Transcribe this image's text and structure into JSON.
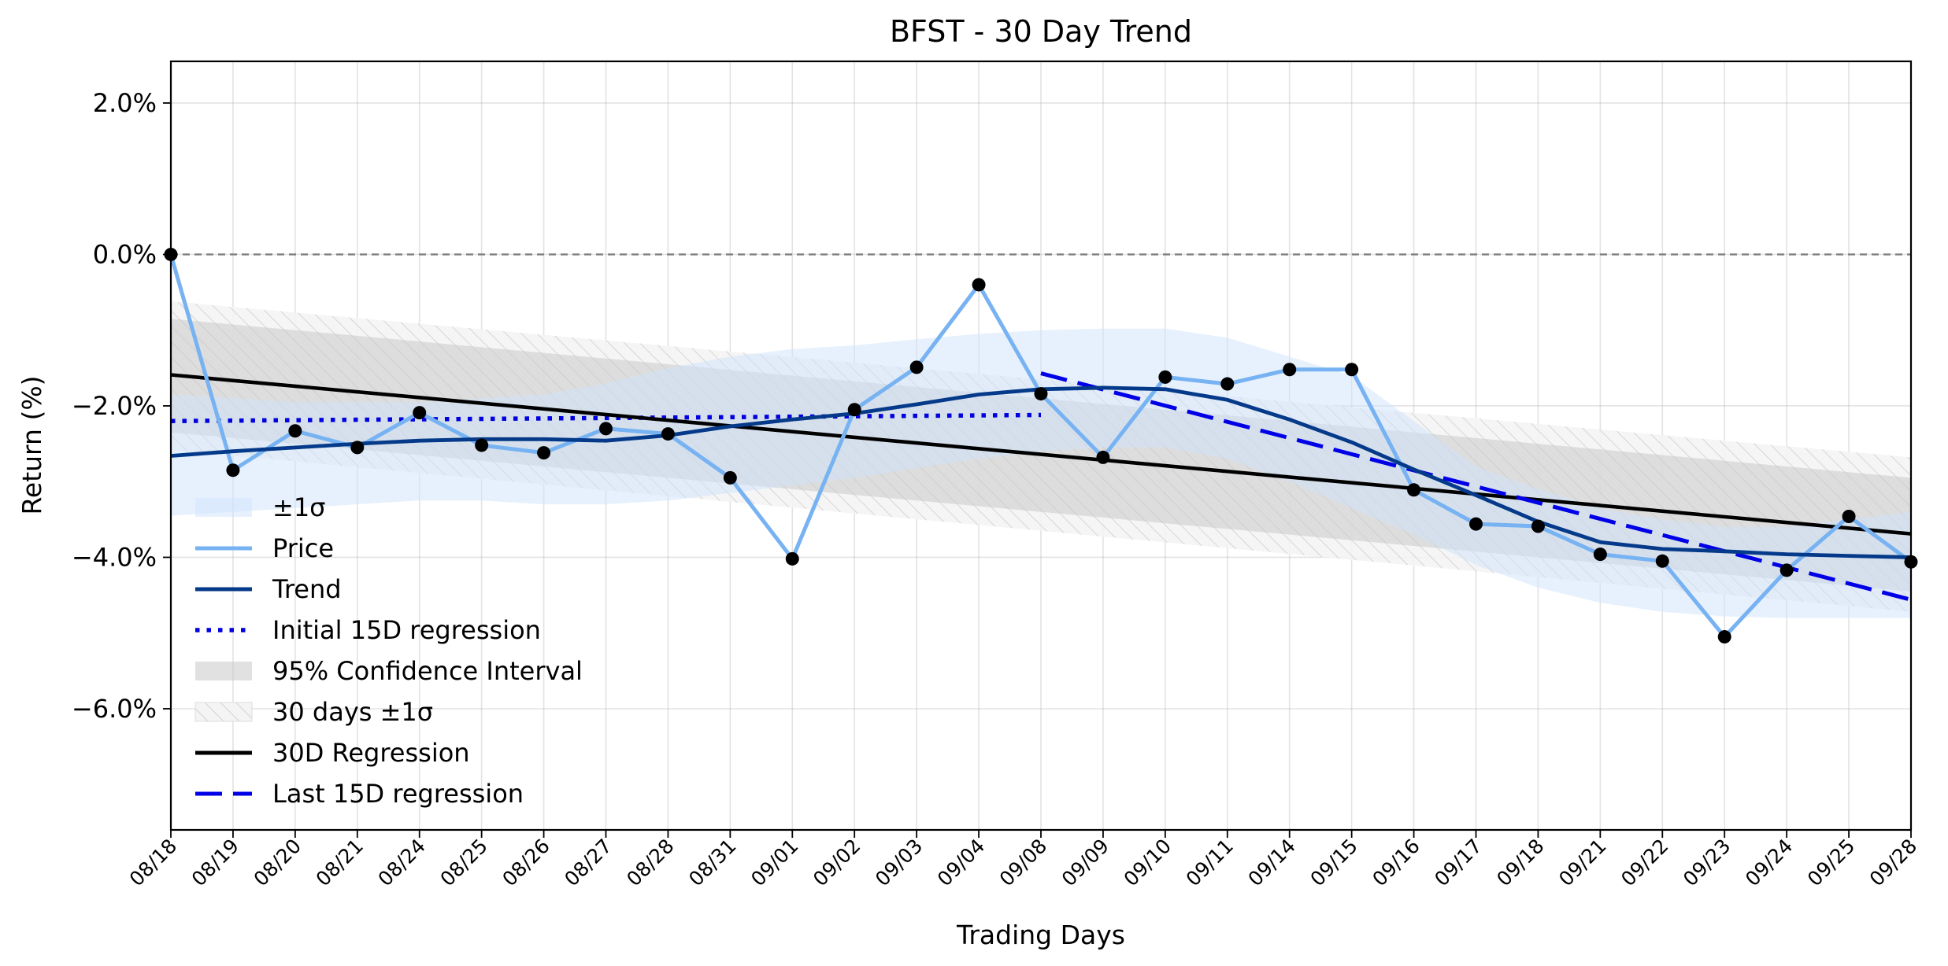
{
  "chart_data": {
    "type": "line",
    "title": "BFST - 30 Day Trend",
    "xlabel": "Trading Days",
    "ylabel": "Return (%)",
    "categories": [
      "08/18",
      "08/19",
      "08/20",
      "08/21",
      "08/24",
      "08/25",
      "08/26",
      "08/27",
      "08/28",
      "08/31",
      "09/01",
      "09/02",
      "09/03",
      "09/04",
      "09/08",
      "09/09",
      "09/10",
      "09/11",
      "09/14",
      "09/15",
      "09/16",
      "09/17",
      "09/18",
      "09/21",
      "09/22",
      "09/23",
      "09/24",
      "09/25",
      "09/28"
    ],
    "ylim": [
      -7.6,
      2.55
    ],
    "yticks": [
      2.0,
      0.0,
      -2.0,
      -4.0,
      -6.0
    ],
    "ytick_labels": [
      "2.0%",
      "0.0%",
      "−2.0%",
      "−4.0%",
      "−6.0%"
    ],
    "grid": true,
    "legend_position": "lower-left",
    "reference_line": {
      "y": 0.0,
      "style": "dashed",
      "color": "#808080"
    },
    "series": [
      {
        "name": "Price",
        "color": "#77b2f2",
        "markers": true,
        "values": [
          0.0,
          -2.85,
          -2.33,
          -2.55,
          -2.09,
          -2.52,
          -2.62,
          -2.3,
          -2.37,
          -2.95,
          -4.02,
          -2.05,
          -1.49,
          -0.4,
          -1.84,
          -2.68,
          -1.62,
          -1.71,
          -1.52,
          -1.52,
          -3.11,
          -3.56,
          -3.59,
          -3.96,
          -4.05,
          -5.05,
          -4.17,
          -3.46,
          -4.06
        ]
      },
      {
        "name": "Trend",
        "color": "#053a8a",
        "values": [
          -2.66,
          -2.6,
          -2.55,
          -2.5,
          -2.46,
          -2.44,
          -2.44,
          -2.46,
          -2.39,
          -2.27,
          -2.18,
          -2.1,
          -1.98,
          -1.85,
          -1.78,
          -1.76,
          -1.78,
          -1.92,
          -2.18,
          -2.48,
          -2.84,
          -3.18,
          -3.53,
          -3.8,
          -3.89,
          -3.92,
          -3.96,
          -3.98,
          -4.0
        ]
      },
      {
        "name": "Initial 15D regression",
        "color": "#0000e0",
        "style": "dotted",
        "x_range": [
          0,
          14
        ],
        "endpoints": [
          -2.2,
          -2.12
        ]
      },
      {
        "name": "30D Regression",
        "color": "#000000",
        "x_range": [
          0,
          28
        ],
        "endpoints": [
          -1.59,
          -3.69
        ]
      },
      {
        "name": "Last 15D regression",
        "color": "#0000e6",
        "style": "dashed",
        "x_range": [
          14,
          28
        ],
        "endpoints": [
          -1.57,
          -4.56
        ]
      }
    ],
    "bands": [
      {
        "name": "±1σ",
        "color": "#cfe3fb",
        "upper": [
          -1.85,
          -1.9,
          -1.95,
          -1.95,
          -1.95,
          -1.9,
          -1.85,
          -1.7,
          -1.5,
          -1.35,
          -1.25,
          -1.2,
          -1.12,
          -1.05,
          -1.0,
          -0.98,
          -0.98,
          -1.1,
          -1.35,
          -1.6,
          -2.2,
          -2.8,
          -3.1,
          -3.35,
          -3.5,
          -3.6,
          -3.6,
          -3.5,
          -3.4
        ],
        "lower": [
          -3.45,
          -3.4,
          -3.35,
          -3.3,
          -3.25,
          -3.25,
          -3.3,
          -3.3,
          -3.25,
          -3.15,
          -3.05,
          -2.95,
          -2.82,
          -2.7,
          -2.6,
          -2.55,
          -2.55,
          -2.7,
          -3.0,
          -3.35,
          -3.7,
          -4.1,
          -4.4,
          -4.6,
          -4.72,
          -4.78,
          -4.8,
          -4.8,
          -4.8
        ]
      },
      {
        "name": "95% Confidence Interval",
        "color": "#c9c9c9",
        "upper_endpoints": [
          -0.85,
          -2.95
        ],
        "lower_endpoints": [
          -2.35,
          -4.45
        ]
      },
      {
        "name": "30 days ±1σ",
        "color": "#e6e6e6",
        "hatched": true,
        "upper_endpoints": [
          -0.62,
          -2.68
        ],
        "lower_endpoints": [
          -2.58,
          -4.72
        ]
      }
    ],
    "legend_order": [
      "±1σ",
      "Price",
      "Trend",
      "Initial 15D regression",
      "95% Confidence Interval",
      "30 days ±1σ",
      "30D Regression",
      "Last 15D regression"
    ]
  }
}
